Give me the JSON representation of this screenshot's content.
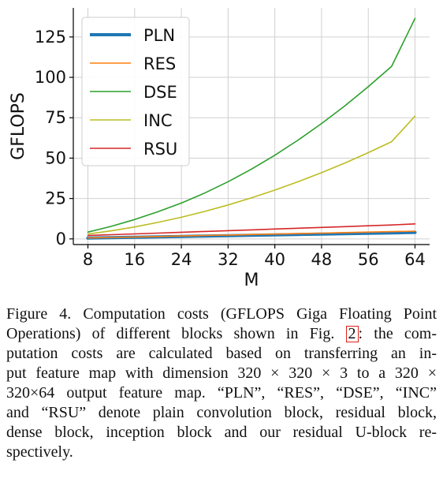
{
  "chart_data": {
    "type": "line",
    "xlabel": "M",
    "ylabel": "GFLOPS",
    "x": [
      8,
      12,
      16,
      20,
      24,
      28,
      32,
      36,
      40,
      44,
      48,
      52,
      56,
      60,
      64
    ],
    "xticks": [
      8,
      16,
      24,
      32,
      40,
      48,
      56,
      64
    ],
    "yticks": [
      0,
      25,
      50,
      75,
      100,
      125
    ],
    "xlim": [
      5.5,
      66.5
    ],
    "ylim": [
      -3.5,
      143
    ],
    "grid": true,
    "legend_position": "upper-left",
    "series": [
      {
        "name": "PLN",
        "color": "#1f77b4",
        "width": 4,
        "values": [
          0.5,
          0.75,
          1.0,
          1.25,
          1.5,
          1.75,
          2.0,
          2.25,
          2.5,
          2.75,
          3.0,
          3.25,
          3.5,
          3.75,
          4.0
        ]
      },
      {
        "name": "RES",
        "color": "#ff7f0e",
        "width": 1.6,
        "values": [
          0.6,
          0.9,
          1.2,
          1.5,
          1.8,
          2.1,
          2.4,
          2.7,
          3.0,
          3.3,
          3.6,
          3.9,
          4.2,
          4.5,
          4.8
        ]
      },
      {
        "name": "DSE",
        "color": "#2ca02c",
        "width": 1.6,
        "values": [
          4.2,
          7.8,
          12.0,
          16.8,
          22.2,
          28.4,
          35.4,
          43.2,
          51.8,
          61.2,
          71.4,
          82.4,
          94.2,
          106.8,
          136.5
        ]
      },
      {
        "name": "INC",
        "color": "#bcbd22",
        "width": 1.6,
        "values": [
          3.0,
          5.0,
          7.4,
          10.2,
          13.4,
          17.0,
          21.0,
          25.4,
          30.2,
          35.4,
          41.0,
          47.0,
          53.4,
          60.2,
          76.0
        ]
      },
      {
        "name": "RSU",
        "color": "#d62728",
        "width": 1.6,
        "values": [
          2.1,
          2.6,
          3.1,
          3.6,
          4.1,
          4.6,
          5.1,
          5.6,
          6.1,
          6.6,
          7.1,
          7.6,
          8.1,
          8.6,
          9.3
        ]
      }
    ]
  },
  "caption": {
    "lines": [
      "Figure 4. Computation costs (GFLOPS Giga Floating Point",
      "Operations) of different blocks shown in Fig. ",
      "putation costs are calculated based on transferring an in-",
      "put feature map with dimension 320 × 320 × 3 to a 320 ×",
      "320×64 output feature map. “PLN”, “RES”, “DSE”, “INC”",
      "and “RSU” denote plain convolution block, residual block,",
      "dense block, inception block and our residual U-block re-",
      "spectively."
    ],
    "figure_ref": "2",
    "line2_tail": ": the com-"
  }
}
